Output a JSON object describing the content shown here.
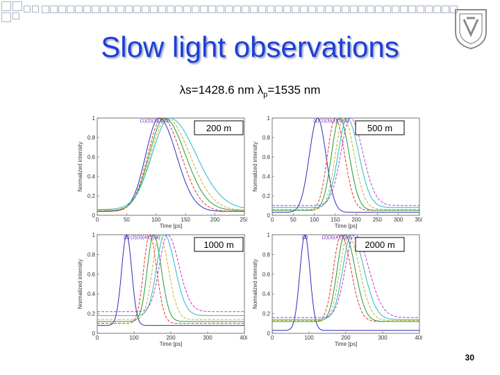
{
  "slide": {
    "title": "Slow light observations",
    "subtitle_main": "λs=1428.6 nm λ",
    "subtitle_sub": "p",
    "subtitle_tail": "=1535 nm",
    "page_number": "30"
  },
  "colors": {
    "title": "#1d3fd6",
    "series": [
      "#2b2bb8",
      "#e0342e",
      "#1e9a32",
      "#c4b12a",
      "#22b9c9",
      "#c43ac7"
    ]
  },
  "chart_data": [
    {
      "type": "line",
      "length_label": "200 m",
      "xlabel": "Time [ps]",
      "ylabel": "Normalized intensity",
      "xlim": [
        0,
        250
      ],
      "ylim": [
        0,
        1
      ],
      "xticks": [
        "0",
        "50",
        "100",
        "150",
        "200",
        "250"
      ],
      "yticks": [
        "0",
        "0.2",
        "0.4",
        "0.6",
        "0.8",
        "1"
      ],
      "peak_labels": "(1)(2)(3)(4)(5)",
      "series": [
        {
          "peak_x": 105,
          "width": 32,
          "skew": 1.3,
          "base": 0.04
        },
        {
          "peak_x": 110,
          "width": 34,
          "skew": 1.35,
          "base": 0.04
        },
        {
          "peak_x": 114,
          "width": 36,
          "skew": 1.4,
          "base": 0.05
        },
        {
          "peak_x": 118,
          "width": 38,
          "skew": 1.45,
          "base": 0.05
        },
        {
          "peak_x": 123,
          "width": 42,
          "skew": 1.5,
          "base": 0.06
        }
      ]
    },
    {
      "type": "line",
      "length_label": "500 m",
      "xlabel": "Time [ps]",
      "ylabel": "Normalized intensity",
      "xlim": [
        0,
        350
      ],
      "ylim": [
        0,
        1
      ],
      "xticks": [
        "0",
        "50",
        "100",
        "150",
        "200",
        "250",
        "300",
        "350"
      ],
      "yticks": [
        "0",
        "0.2",
        "0.4",
        "0.6",
        "0.8",
        "1"
      ],
      "peak_labels": "(1)(2)(3)(4)(5)(6)",
      "series": [
        {
          "peak_x": 108,
          "width": 28,
          "skew": 1.0,
          "base": 0.03
        },
        {
          "peak_x": 150,
          "width": 26,
          "skew": 1.2,
          "base": 0.05
        },
        {
          "peak_x": 160,
          "width": 27,
          "skew": 1.2,
          "base": 0.05
        },
        {
          "peak_x": 170,
          "width": 28,
          "skew": 1.25,
          "base": 0.06
        },
        {
          "peak_x": 178,
          "width": 30,
          "skew": 1.3,
          "base": 0.08
        },
        {
          "peak_x": 186,
          "width": 32,
          "skew": 1.3,
          "base": 0.1
        }
      ]
    },
    {
      "type": "line",
      "length_label": "1000 m",
      "xlabel": "Time [ps]",
      "ylabel": "Normalized intensity",
      "xlim": [
        0,
        450
      ],
      "ylim": [
        0,
        1
      ],
      "xticks": [
        "0",
        "100",
        "200",
        "300",
        "400"
      ],
      "yticks": [
        "0",
        "0.2",
        "0.4",
        "0.6",
        "0.8",
        "1"
      ],
      "peak_labels": "(2)(3)(4)(5)(6)",
      "first_label": "(1)",
      "series": [
        {
          "peak_x": 90,
          "width": 22,
          "skew": 1.0,
          "base": 0.08
        },
        {
          "peak_x": 160,
          "width": 26,
          "skew": 1.2,
          "base": 0.1
        },
        {
          "peak_x": 172,
          "width": 27,
          "skew": 1.25,
          "base": 0.12
        },
        {
          "peak_x": 190,
          "width": 30,
          "skew": 1.3,
          "base": 0.14
        },
        {
          "peak_x": 205,
          "width": 33,
          "skew": 1.4,
          "base": 0.18
        },
        {
          "peak_x": 215,
          "width": 35,
          "skew": 1.4,
          "base": 0.22
        }
      ]
    },
    {
      "type": "line",
      "length_label": "2000 m",
      "xlabel": "Time [ps]",
      "ylabel": "Normalized intensity",
      "xlim": [
        0,
        450
      ],
      "ylim": [
        0,
        1
      ],
      "xticks": [
        "0",
        "100",
        "200",
        "300",
        "400"
      ],
      "yticks": [
        "0",
        "0.2",
        "0.4",
        "0.6",
        "0.8",
        "1"
      ],
      "peak_labels": "(2)(3)(4)(5)(6)",
      "first_label": "(1)",
      "series": [
        {
          "peak_x": 100,
          "width": 22,
          "skew": 1.0,
          "base": 0.03
        },
        {
          "peak_x": 210,
          "width": 32,
          "skew": 1.35,
          "base": 0.12
        },
        {
          "peak_x": 222,
          "width": 33,
          "skew": 1.35,
          "base": 0.12
        },
        {
          "peak_x": 232,
          "width": 35,
          "skew": 1.4,
          "base": 0.13
        },
        {
          "peak_x": 242,
          "width": 37,
          "skew": 1.45,
          "base": 0.14
        },
        {
          "peak_x": 252,
          "width": 40,
          "skew": 1.5,
          "base": 0.16
        }
      ]
    }
  ]
}
